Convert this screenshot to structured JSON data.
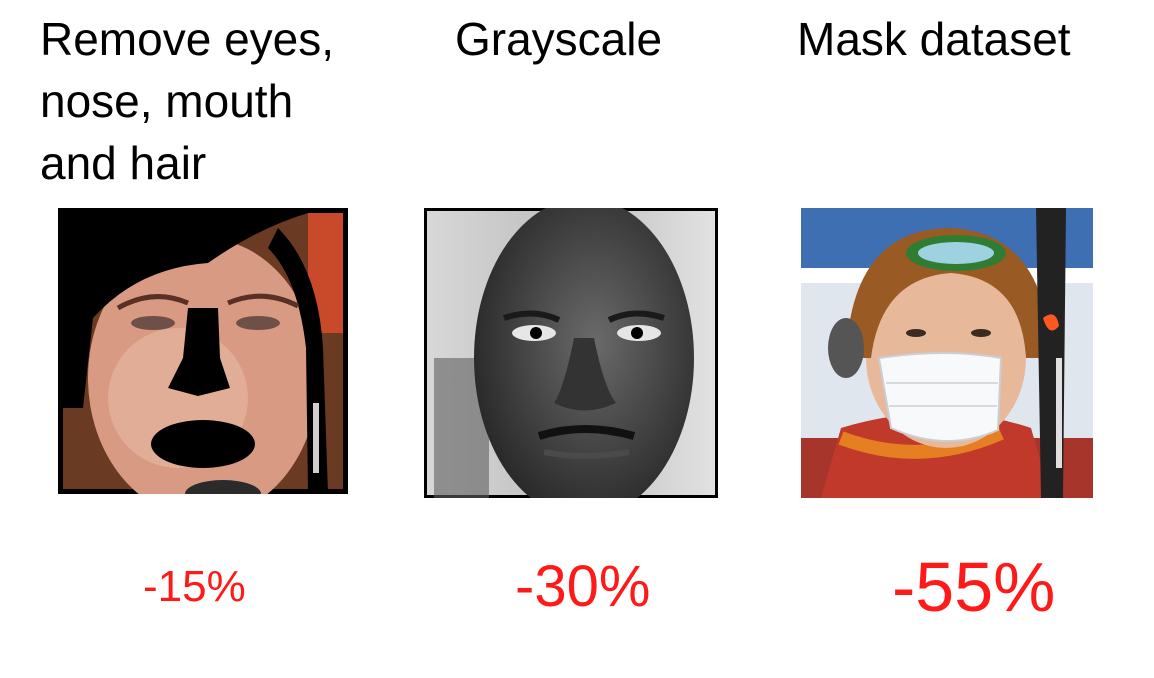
{
  "columns": [
    {
      "title_lines": [
        "Remove eyes,",
        "nose, mouth",
        "and hair"
      ],
      "delta": "-15%",
      "image": "face-with-eyes-nose-mouth-hair-blacked-out"
    },
    {
      "title_lines": [
        "Grayscale"
      ],
      "delta": "-30%",
      "image": "grayscale-face"
    },
    {
      "title_lines": [
        "Mask dataset"
      ],
      "delta": "-55%",
      "image": "skier-wearing-face-mask"
    }
  ],
  "colors": {
    "text": "#000000",
    "delta": "#ff1a1a"
  }
}
